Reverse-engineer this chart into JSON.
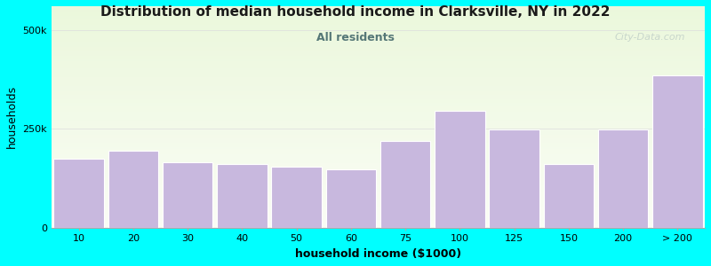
{
  "title": "Distribution of median household income in Clarksville, NY in 2022",
  "subtitle": "All residents",
  "xlabel": "household income ($1000)",
  "ylabel": "households",
  "background_color": "#00FFFF",
  "bar_color": "#c8b8de",
  "bar_edgecolor": "#ffffff",
  "categories": [
    "10",
    "20",
    "30",
    "40",
    "50",
    "60",
    "75",
    "100",
    "125",
    "150",
    "200",
    "> 200"
  ],
  "values": [
    175000,
    195000,
    165000,
    162000,
    155000,
    148000,
    220000,
    295000,
    248000,
    162000,
    248000,
    385000
  ],
  "yticks": [
    0,
    250000,
    500000
  ],
  "ytick_labels": [
    "0",
    "250k",
    "500k"
  ],
  "ylim": [
    0,
    560000
  ],
  "title_fontsize": 11,
  "subtitle_fontsize": 9,
  "axis_label_fontsize": 9,
  "tick_fontsize": 8,
  "subtitle_color": "#557777",
  "title_color": "#1a1a1a",
  "watermark_text": "City-Data.com"
}
